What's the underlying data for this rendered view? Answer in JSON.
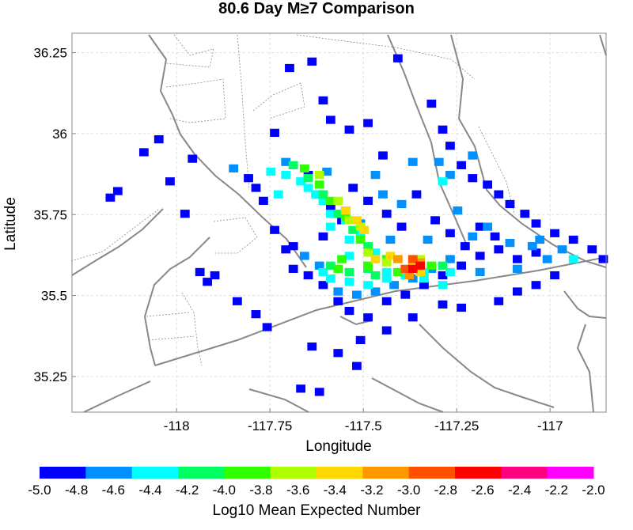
{
  "chart_data": {
    "type": "heatmap",
    "title": "80.6 Day M≥7 Comparison",
    "xlabel": "Longitude",
    "ylabel": "Latitude",
    "xlim": [
      -118.28,
      -116.85
    ],
    "ylim": [
      35.14,
      36.31
    ],
    "x_ticks": [
      -118,
      -117.75,
      -117.5,
      -117.25,
      -117
    ],
    "x_tick_labels": [
      "-118",
      "-117.75",
      "-117.5",
      "-117.25",
      "-117"
    ],
    "y_ticks": [
      35.25,
      35.5,
      35.75,
      36,
      36.25
    ],
    "y_tick_labels": [
      "35.25",
      "35.5",
      "35.75",
      "36",
      "36.25"
    ],
    "grid": true,
    "colorbar": {
      "label": "Log10 Mean Expected Number",
      "min": -5.0,
      "max": -2.0,
      "ticks": [
        -5.0,
        -4.8,
        -4.6,
        -4.4,
        -4.2,
        -4.0,
        -3.8,
        -3.6,
        -3.4,
        -3.2,
        -3.0,
        -2.8,
        -2.6,
        -2.4,
        -2.2,
        -2.0
      ],
      "tick_labels": [
        "-5.0",
        "-4.8",
        "-4.6",
        "-4.4",
        "-4.2",
        "-4.0",
        "-3.8",
        "-3.6",
        "-3.4",
        "-3.2",
        "-3.0",
        "-2.8",
        "-2.6",
        "-2.4",
        "-2.2",
        "-2.0"
      ],
      "colors": [
        "#0000ff",
        "#0090ff",
        "#00ffff",
        "#00ff60",
        "#30ff00",
        "#b0ff00",
        "#ffd800",
        "#ff9800",
        "#ff5000",
        "#ff0000",
        "#ff0080",
        "#ff00ff"
      ]
    },
    "cell_size_deg": [
      0.025,
      0.025
    ],
    "cells": [
      [
        -118.19,
        35.79,
        -4.9
      ],
      [
        -118.17,
        35.81,
        -4.9
      ],
      [
        -118.1,
        35.93,
        -4.9
      ],
      [
        -118.06,
        35.97,
        -4.9
      ],
      [
        -118.03,
        35.84,
        -4.9
      ],
      [
        -117.99,
        35.74,
        -4.9
      ],
      [
        -117.97,
        35.91,
        -4.9
      ],
      [
        -117.95,
        35.56,
        -4.9
      ],
      [
        -117.93,
        35.53,
        -4.9
      ],
      [
        -117.91,
        35.55,
        -4.9
      ],
      [
        -117.85,
        35.47,
        -4.9
      ],
      [
        -117.82,
        35.85,
        -4.9
      ],
      [
        -117.8,
        35.82,
        -4.9
      ],
      [
        -117.78,
        35.78,
        -4.9
      ],
      [
        -117.75,
        35.69,
        -4.9
      ],
      [
        -117.72,
        35.63,
        -4.9
      ],
      [
        -117.8,
        35.43,
        -4.9
      ],
      [
        -117.77,
        35.39,
        -4.9
      ],
      [
        -117.75,
        35.99,
        -4.9
      ],
      [
        -117.71,
        36.19,
        -4.9
      ],
      [
        -117.65,
        36.21,
        -4.9
      ],
      [
        -117.62,
        36.09,
        -4.9
      ],
      [
        -117.6,
        36.03,
        -4.9
      ],
      [
        -117.55,
        36.0,
        -4.9
      ],
      [
        -117.5,
        36.02,
        -4.9
      ],
      [
        -117.46,
        35.92,
        -4.9
      ],
      [
        -117.42,
        36.22,
        -4.9
      ],
      [
        -117.33,
        36.08,
        -4.9
      ],
      [
        -117.3,
        36.0,
        -4.9
      ],
      [
        -117.28,
        35.95,
        -4.9
      ],
      [
        -117.25,
        35.89,
        -4.9
      ],
      [
        -117.22,
        35.85,
        -4.9
      ],
      [
        -117.18,
        35.83,
        -4.9
      ],
      [
        -117.15,
        35.8,
        -4.9
      ],
      [
        -117.12,
        35.77,
        -4.9
      ],
      [
        -117.08,
        35.74,
        -4.9
      ],
      [
        -117.05,
        35.71,
        -4.9
      ],
      [
        -117.0,
        35.68,
        -4.9
      ],
      [
        -116.95,
        35.66,
        -4.9
      ],
      [
        -116.9,
        35.63,
        -4.9
      ],
      [
        -116.87,
        35.6,
        -4.9
      ],
      [
        -117.0,
        35.55,
        -4.9
      ],
      [
        -117.05,
        35.52,
        -4.9
      ],
      [
        -117.1,
        35.5,
        -4.9
      ],
      [
        -117.15,
        35.47,
        -4.9
      ],
      [
        -117.25,
        35.45,
        -4.9
      ],
      [
        -117.3,
        35.46,
        -4.9
      ],
      [
        -117.38,
        35.42,
        -4.9
      ],
      [
        -117.45,
        35.38,
        -4.9
      ],
      [
        -117.52,
        35.35,
        -4.9
      ],
      [
        -117.58,
        35.31,
        -4.9
      ],
      [
        -117.65,
        35.33,
        -4.9
      ],
      [
        -117.68,
        35.2,
        -4.9
      ],
      [
        -117.63,
        35.19,
        -4.9
      ],
      [
        -117.53,
        35.27,
        -4.9
      ],
      [
        -117.7,
        35.57,
        -4.9
      ],
      [
        -117.66,
        35.55,
        -4.9
      ],
      [
        -117.62,
        35.52,
        -4.9
      ],
      [
        -117.58,
        35.47,
        -4.9
      ],
      [
        -117.55,
        35.44,
        -4.9
      ],
      [
        -117.5,
        35.42,
        -4.9
      ],
      [
        -117.45,
        35.47,
        -4.9
      ],
      [
        -117.4,
        35.49,
        -4.9
      ],
      [
        -117.35,
        35.52,
        -4.9
      ],
      [
        -117.3,
        35.55,
        -4.9
      ],
      [
        -117.25,
        35.58,
        -4.9
      ],
      [
        -117.2,
        35.61,
        -4.9
      ],
      [
        -117.15,
        35.63,
        -4.9
      ],
      [
        -117.1,
        35.6,
        -4.9
      ],
      [
        -117.05,
        35.62,
        -4.9
      ],
      [
        -117.66,
        35.86,
        -4.9
      ],
      [
        -117.63,
        35.8,
        -4.9
      ],
      [
        -117.6,
        35.76,
        -4.9
      ],
      [
        -117.57,
        35.72,
        -4.9
      ],
      [
        -117.54,
        35.82,
        -4.9
      ],
      [
        -117.5,
        35.78,
        -4.9
      ],
      [
        -117.45,
        35.74,
        -4.9
      ],
      [
        -117.41,
        35.7,
        -4.9
      ],
      [
        -117.37,
        35.8,
        -4.9
      ],
      [
        -117.32,
        35.72,
        -4.9
      ],
      [
        -117.28,
        35.68,
        -4.9
      ],
      [
        -117.24,
        35.64,
        -4.9
      ],
      [
        -117.2,
        35.7,
        -4.9
      ],
      [
        -117.16,
        35.67,
        -4.9
      ],
      [
        -117.7,
        35.64,
        -4.9
      ],
      [
        -117.62,
        35.67,
        -4.9
      ],
      [
        -117.86,
        35.88,
        -4.7
      ],
      [
        -117.72,
        35.9,
        -4.7
      ],
      [
        -117.48,
        35.86,
        -4.7
      ],
      [
        -117.38,
        35.9,
        -4.7
      ],
      [
        -117.28,
        35.86,
        -4.7
      ],
      [
        -117.22,
        35.92,
        -4.7
      ],
      [
        -117.18,
        35.7,
        -4.7
      ],
      [
        -117.12,
        35.65,
        -4.7
      ],
      [
        -117.06,
        35.64,
        -4.7
      ],
      [
        -117.02,
        35.6,
        -4.7
      ],
      [
        -116.98,
        35.63,
        -4.7
      ],
      [
        -117.28,
        35.6,
        -4.7
      ],
      [
        -117.33,
        35.57,
        -4.7
      ],
      [
        -117.38,
        35.54,
        -4.7
      ],
      [
        -117.43,
        35.52,
        -4.7
      ],
      [
        -117.48,
        35.5,
        -4.7
      ],
      [
        -117.53,
        35.49,
        -4.7
      ],
      [
        -117.58,
        35.5,
        -4.7
      ],
      [
        -117.63,
        35.58,
        -4.7
      ],
      [
        -117.67,
        35.61,
        -4.7
      ],
      [
        -117.56,
        35.75,
        -4.7
      ],
      [
        -117.52,
        35.71,
        -4.7
      ],
      [
        -117.44,
        35.66,
        -4.7
      ],
      [
        -117.34,
        35.66,
        -4.7
      ],
      [
        -117.26,
        35.75,
        -4.7
      ],
      [
        -117.22,
        35.67,
        -4.7
      ],
      [
        -117.31,
        35.9,
        -4.7
      ],
      [
        -117.41,
        35.77,
        -4.7
      ],
      [
        -117.46,
        35.8,
        -4.7
      ],
      [
        -117.61,
        35.87,
        -4.7
      ],
      [
        -117.2,
        35.56,
        -4.7
      ],
      [
        -117.1,
        35.57,
        -4.7
      ],
      [
        -117.04,
        35.66,
        -4.7
      ],
      [
        -117.76,
        35.87,
        -4.5
      ],
      [
        -117.74,
        35.8,
        -4.5
      ],
      [
        -117.66,
        35.82,
        -4.5
      ],
      [
        -117.62,
        35.78,
        -4.5
      ],
      [
        -117.6,
        35.74,
        -4.5
      ],
      [
        -117.56,
        35.72,
        -4.5
      ],
      [
        -117.52,
        35.68,
        -4.5
      ],
      [
        -117.3,
        35.84,
        -4.5
      ],
      [
        -116.95,
        35.6,
        -4.5
      ],
      [
        -117.4,
        35.55,
        -4.5
      ],
      [
        -117.35,
        35.56,
        -4.5
      ],
      [
        -117.6,
        35.54,
        -4.5
      ],
      [
        -117.5,
        35.52,
        -4.5
      ],
      [
        -117.3,
        35.52,
        -4.5
      ],
      [
        -117.45,
        35.56,
        -4.5
      ],
      [
        -117.72,
        35.86,
        -4.3
      ],
      [
        -117.68,
        35.84,
        -4.3
      ],
      [
        -117.64,
        35.8,
        -4.3
      ],
      [
        -117.6,
        35.7,
        -4.3
      ],
      [
        -117.55,
        35.66,
        -4.3
      ],
      [
        -117.48,
        35.62,
        -4.3
      ],
      [
        -117.62,
        35.56,
        -4.3
      ],
      [
        -117.55,
        35.53,
        -4.3
      ],
      [
        -117.45,
        35.54,
        -4.3
      ],
      [
        -117.35,
        35.54,
        -4.3
      ],
      [
        -117.28,
        35.56,
        -4.3
      ],
      [
        -117.55,
        35.61,
        -4.3
      ],
      [
        -117.7,
        35.89,
        -4.1
      ],
      [
        -117.66,
        35.85,
        -4.1
      ],
      [
        -117.62,
        35.8,
        -4.1
      ],
      [
        -117.58,
        35.74,
        -4.1
      ],
      [
        -117.54,
        35.69,
        -4.1
      ],
      [
        -117.5,
        35.64,
        -4.1
      ],
      [
        -117.6,
        35.58,
        -4.1
      ],
      [
        -117.5,
        35.57,
        -4.1
      ],
      [
        -117.38,
        35.58,
        -4.1
      ],
      [
        -117.3,
        35.58,
        -4.1
      ],
      [
        -117.55,
        35.56,
        -4.1
      ],
      [
        -117.48,
        35.55,
        -4.1
      ],
      [
        -117.67,
        35.88,
        -3.9
      ],
      [
        -117.63,
        35.83,
        -3.9
      ],
      [
        -117.6,
        35.78,
        -3.9
      ],
      [
        -117.56,
        35.73,
        -3.9
      ],
      [
        -117.52,
        35.66,
        -3.9
      ],
      [
        -117.57,
        35.6,
        -3.9
      ],
      [
        -117.5,
        35.58,
        -3.9
      ],
      [
        -117.45,
        35.6,
        -3.9
      ],
      [
        -117.33,
        35.58,
        -3.9
      ],
      [
        -117.58,
        35.57,
        -3.9
      ],
      [
        -117.42,
        35.56,
        -3.9
      ],
      [
        -117.63,
        35.86,
        -3.7
      ],
      [
        -117.58,
        35.78,
        -3.7
      ],
      [
        -117.55,
        35.72,
        -3.7
      ],
      [
        -117.52,
        35.7,
        -3.7
      ],
      [
        -117.5,
        35.62,
        -3.7
      ],
      [
        -117.45,
        35.59,
        -3.7
      ],
      [
        -117.36,
        35.6,
        -3.7
      ],
      [
        -117.56,
        35.75,
        -3.5
      ],
      [
        -117.53,
        35.72,
        -3.5
      ],
      [
        -117.51,
        35.69,
        -3.5
      ],
      [
        -117.48,
        35.6,
        -3.5
      ],
      [
        -117.38,
        35.58,
        -3.5
      ],
      [
        -117.44,
        35.61,
        -3.3
      ],
      [
        -117.36,
        35.56,
        -3.3
      ],
      [
        -117.42,
        35.6,
        -3.1
      ],
      [
        -117.36,
        35.59,
        -3.1
      ],
      [
        -117.39,
        35.55,
        -3.1
      ],
      [
        -117.38,
        35.6,
        -2.9
      ],
      [
        -117.4,
        35.57,
        -2.9
      ],
      [
        -117.38,
        35.57,
        -2.7
      ],
      [
        -117.36,
        35.58,
        -2.7
      ]
    ]
  }
}
